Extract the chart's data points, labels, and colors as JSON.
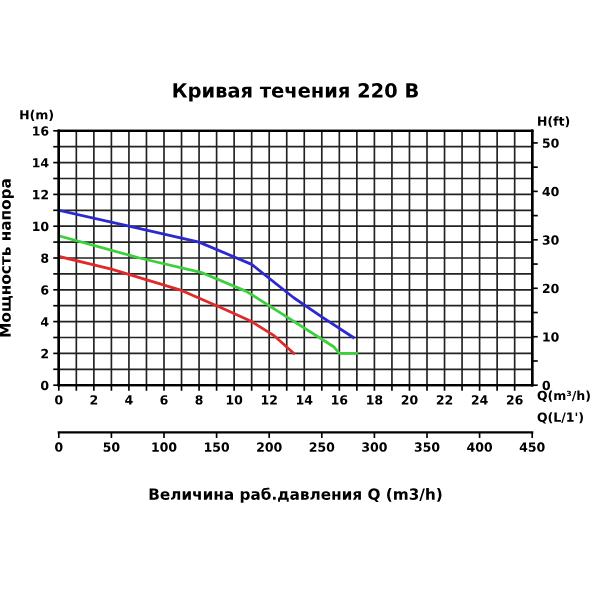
{
  "chart_data": {
    "type": "line",
    "title": "Кривая течения 220 В",
    "xlabel": "Величина раб.давления Q (m3/h)",
    "ylabel": "Мощность напора",
    "y2label": "H(ft)",
    "x2label": "Q(L/1')",
    "annotations": [
      "H(m)",
      "Q(m³/h)"
    ],
    "series": [
      {
        "color": "#2a2ad0",
        "x": [
          0,
          4,
          8,
          11,
          13.4,
          15,
          16.8
        ],
        "values": [
          11,
          10,
          9,
          7.6,
          5.5,
          4.3,
          3
        ]
      },
      {
        "color": "#3cd03c",
        "x": [
          0,
          4.6,
          8.1,
          10.7,
          13,
          15.7,
          16,
          17
        ],
        "values": [
          9.4,
          8,
          7.1,
          5.9,
          4.3,
          2.4,
          2,
          2
        ]
      },
      {
        "color": "#e02a2a",
        "x": [
          0,
          3,
          6.9,
          9.2,
          11,
          12.3,
          13.4
        ],
        "values": [
          8.1,
          7.3,
          6,
          4.9,
          4,
          3.1,
          2
        ]
      }
    ],
    "xlim": [
      0,
      27
    ],
    "xticks": [
      0,
      {
        "value": 1,
        "label": null
      },
      2,
      {
        "value": 3,
        "label": null
      },
      4,
      {
        "value": 5,
        "label": null
      },
      6,
      {
        "value": 7,
        "label": null
      },
      8,
      {
        "value": 9,
        "label": null
      },
      10,
      {
        "value": 11,
        "label": null
      },
      12,
      {
        "value": 13,
        "label": null
      },
      14,
      {
        "value": 15,
        "label": null
      },
      16,
      {
        "value": 17,
        "label": null
      },
      18,
      {
        "value": 19,
        "label": null
      },
      20,
      {
        "value": 21,
        "label": null
      },
      22,
      {
        "value": 23,
        "label": null
      },
      24,
      {
        "value": 25,
        "label": null
      },
      26
    ],
    "ylim": [
      0,
      16
    ],
    "yticks": [
      0,
      {
        "value": 1,
        "label": null
      },
      2,
      {
        "value": 3,
        "label": null
      },
      4,
      {
        "value": 5,
        "label": null
      },
      6,
      {
        "value": 7,
        "label": null
      },
      8,
      {
        "value": 9,
        "label": null
      },
      10,
      {
        "value": 11,
        "label": null
      },
      12,
      {
        "value": 13,
        "label": null
      },
      14,
      {
        "value": 15,
        "label": null
      },
      16
    ],
    "y2lim": [
      0,
      52.5
    ],
    "y2ticks": [
      0,
      {
        "value": 5,
        "label": null
      },
      10,
      {
        "value": 15,
        "label": null
      },
      20,
      {
        "value": 25,
        "label": null
      },
      30,
      {
        "value": 35,
        "label": null
      },
      40,
      {
        "value": 45,
        "label": null
      },
      50
    ],
    "x2lim": [
      0,
      450
    ],
    "x2ticks": [
      0,
      50,
      100,
      150,
      200,
      250,
      300,
      350,
      400,
      450
    ],
    "grid": true,
    "legend": false,
    "marker": "none",
    "line_style": "solid"
  }
}
